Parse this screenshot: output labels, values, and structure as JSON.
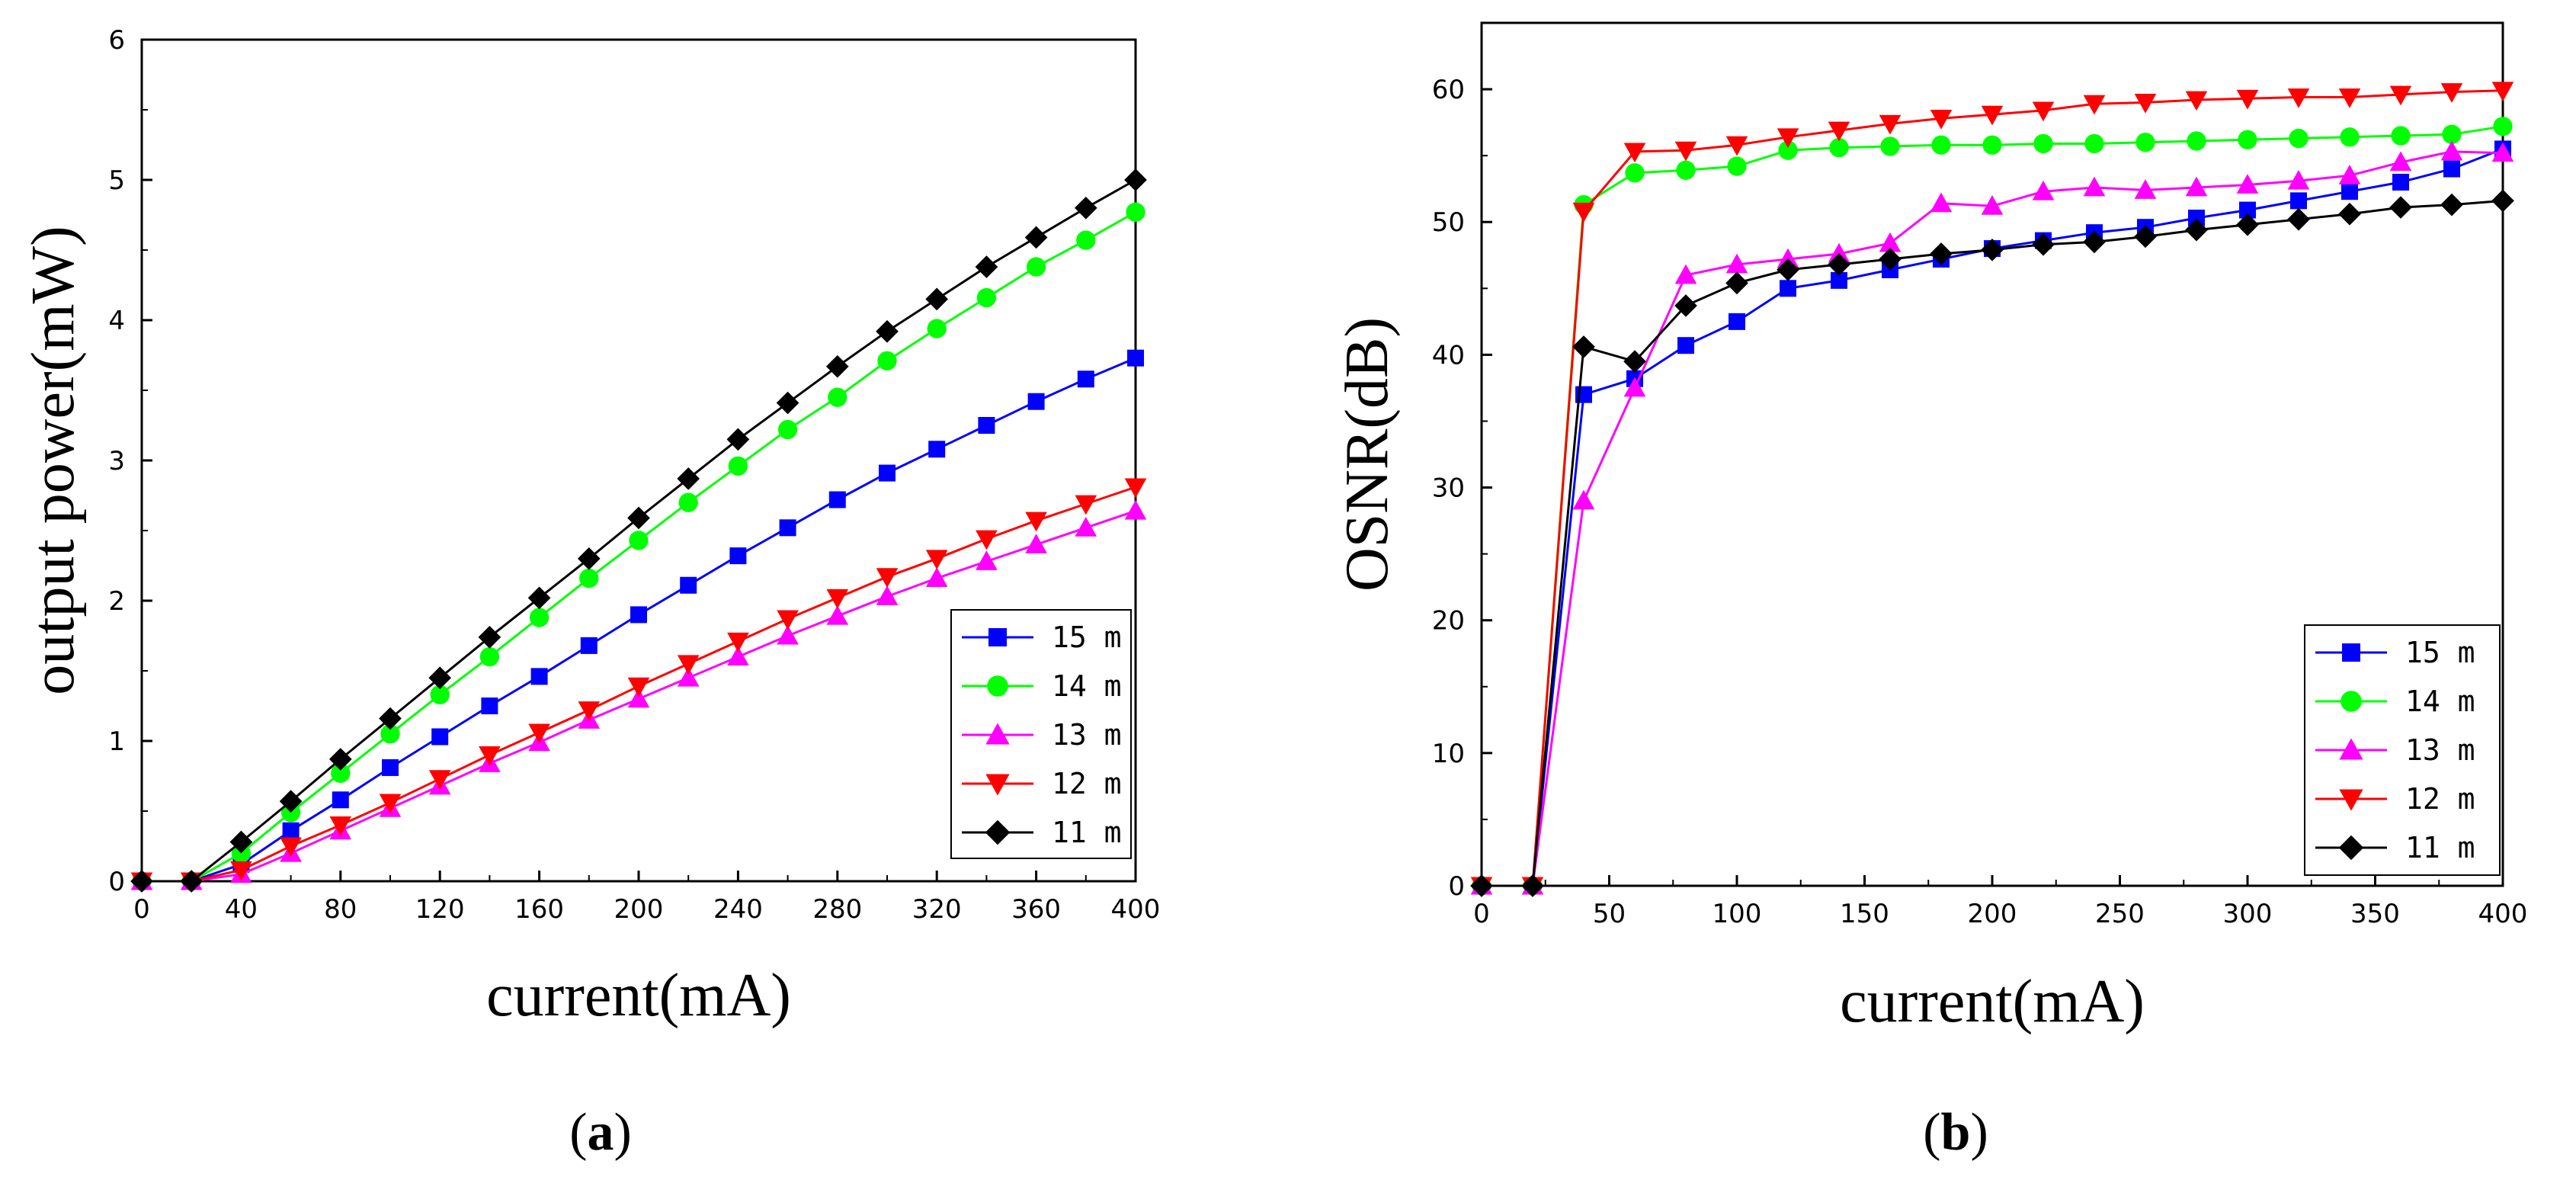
{
  "chart_data": [
    {
      "type": "line",
      "caption_letter": "a",
      "xlabel": "current(mA)",
      "ylabel": "output power(mW)",
      "xlim": [
        0,
        400
      ],
      "ylim": [
        0,
        6
      ],
      "xticks": [
        0,
        40,
        80,
        120,
        160,
        200,
        240,
        280,
        320,
        360,
        400
      ],
      "xtick_labels": [
        "0",
        "40",
        "80",
        "120",
        "160",
        "200",
        "240",
        "280",
        "320",
        "360",
        "400"
      ],
      "yticks": [
        0,
        1,
        2,
        3,
        4,
        5,
        6
      ],
      "ytick_labels": [
        "0",
        "1",
        "2",
        "3",
        "4",
        "5",
        "6"
      ],
      "legend_position": "bottom-right",
      "x": [
        0,
        20,
        40,
        60,
        80,
        100,
        120,
        140,
        160,
        180,
        200,
        220,
        240,
        260,
        280,
        300,
        320,
        340,
        360,
        380,
        400
      ],
      "series": [
        {
          "name": "15 m",
          "color": "#0000ff",
          "marker": "square",
          "values": [
            0,
            0,
            0.12,
            0.36,
            0.58,
            0.81,
            1.03,
            1.25,
            1.46,
            1.68,
            1.9,
            2.11,
            2.32,
            2.52,
            2.72,
            2.91,
            3.08,
            3.25,
            3.42,
            3.58,
            3.73
          ]
        },
        {
          "name": "14 m",
          "color": "#00ff00",
          "marker": "circle",
          "values": [
            0,
            0,
            0.2,
            0.49,
            0.77,
            1.05,
            1.33,
            1.6,
            1.88,
            2.16,
            2.43,
            2.7,
            2.96,
            3.22,
            3.45,
            3.71,
            3.94,
            4.16,
            4.38,
            4.57,
            4.77
          ]
        },
        {
          "name": "13 m",
          "color": "#ff00ff",
          "marker": "triangle-up",
          "values": [
            0,
            0,
            0.05,
            0.2,
            0.36,
            0.52,
            0.68,
            0.84,
            0.99,
            1.15,
            1.3,
            1.45,
            1.6,
            1.75,
            1.89,
            2.03,
            2.16,
            2.28,
            2.4,
            2.52,
            2.64
          ]
        },
        {
          "name": "12 m",
          "color": "#ff0000",
          "marker": "triangle-down",
          "values": [
            0,
            0,
            0.08,
            0.25,
            0.4,
            0.56,
            0.73,
            0.9,
            1.06,
            1.22,
            1.39,
            1.55,
            1.71,
            1.87,
            2.02,
            2.17,
            2.3,
            2.44,
            2.57,
            2.69,
            2.81
          ]
        },
        {
          "name": "11 m",
          "color": "#000000",
          "marker": "diamond",
          "values": [
            0,
            0,
            0.28,
            0.57,
            0.87,
            1.16,
            1.45,
            1.74,
            2.02,
            2.3,
            2.59,
            2.87,
            3.15,
            3.41,
            3.67,
            3.92,
            4.15,
            4.38,
            4.59,
            4.8,
            5.0
          ]
        }
      ]
    },
    {
      "type": "line",
      "caption_letter": "b",
      "xlabel": "current(mA)",
      "ylabel": "OSNR(dB)",
      "xlim": [
        0,
        400
      ],
      "ylim": [
        0,
        65
      ],
      "xticks": [
        0,
        50,
        100,
        150,
        200,
        250,
        300,
        350,
        400
      ],
      "xtick_labels": [
        "0",
        "50",
        "100",
        "150",
        "200",
        "250",
        "300",
        "350",
        "400"
      ],
      "yticks": [
        0,
        10,
        20,
        30,
        40,
        50,
        60
      ],
      "ytick_labels": [
        "0",
        "10",
        "20",
        "30",
        "40",
        "50",
        "60"
      ],
      "legend_position": "bottom-right",
      "x": [
        0,
        20,
        40,
        60,
        80,
        100,
        120,
        140,
        160,
        180,
        200,
        220,
        240,
        260,
        280,
        300,
        320,
        340,
        360,
        380,
        400
      ],
      "series": [
        {
          "name": "15 m",
          "color": "#0000ff",
          "marker": "square",
          "values": [
            0,
            0,
            37,
            38.2,
            40.7,
            42.5,
            45,
            45.6,
            46.4,
            47.2,
            48,
            48.6,
            49.2,
            49.6,
            50.3,
            50.9,
            51.6,
            52.3,
            53,
            54,
            55.5
          ]
        },
        {
          "name": "14 m",
          "color": "#00ff00",
          "marker": "circle",
          "values": [
            0,
            0,
            51.3,
            53.7,
            53.9,
            54.2,
            55.4,
            55.6,
            55.7,
            55.8,
            55.8,
            55.9,
            55.9,
            56,
            56.1,
            56.2,
            56.3,
            56.4,
            56.5,
            56.6,
            57.2
          ]
        },
        {
          "name": "13 m",
          "color": "#ff00ff",
          "marker": "triangle-up",
          "values": [
            0,
            0,
            29,
            37.5,
            46,
            46.8,
            47.2,
            47.6,
            48.4,
            51.4,
            51.2,
            52.3,
            52.6,
            52.4,
            52.6,
            52.8,
            53.1,
            53.5,
            54.5,
            55.3,
            55.2
          ]
        },
        {
          "name": "12 m",
          "color": "#ff0000",
          "marker": "triangle-down",
          "values": [
            0,
            0,
            50.8,
            55.3,
            55.4,
            55.8,
            56.4,
            56.9,
            57.4,
            57.8,
            58.1,
            58.4,
            58.9,
            59,
            59.2,
            59.3,
            59.4,
            59.4,
            59.6,
            59.8,
            59.9
          ]
        },
        {
          "name": "11 m",
          "color": "#000000",
          "marker": "diamond",
          "values": [
            0,
            0,
            40.6,
            39.5,
            43.7,
            45.4,
            46.4,
            46.8,
            47.2,
            47.6,
            47.9,
            48.3,
            48.5,
            48.9,
            49.4,
            49.8,
            50.2,
            50.6,
            51.1,
            51.3,
            51.6
          ]
        }
      ]
    }
  ]
}
